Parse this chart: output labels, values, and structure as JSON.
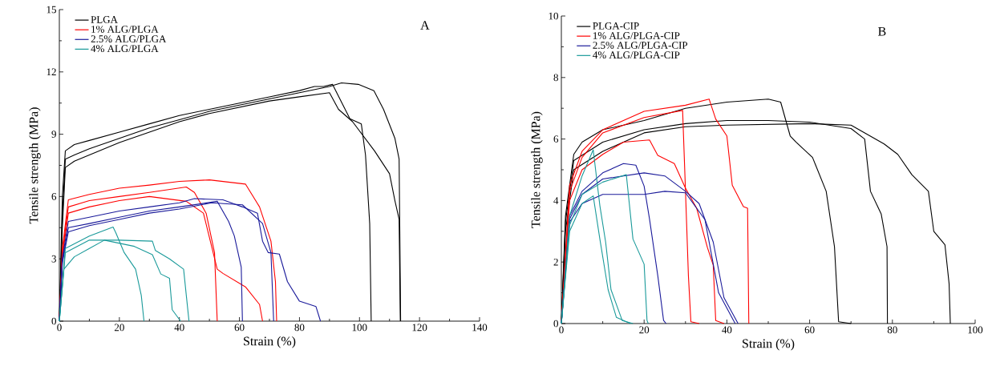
{
  "chart_data": [
    {
      "type": "line",
      "xlabel": "Strain (%)",
      "ylabel": "Tensile strength (MPa)",
      "annotations": [
        "A"
      ],
      "xlim": [
        0,
        140
      ],
      "ylim": [
        0,
        15
      ],
      "xticks": [
        0,
        20,
        40,
        60,
        80,
        100,
        120,
        140
      ],
      "yticks": [
        0,
        3,
        6,
        9,
        12,
        15
      ],
      "legend": "top left",
      "marker": "none",
      "line_style": "solid",
      "series": [
        {
          "name": "PLGA",
          "color": "#000000",
          "x": [
            0,
            1,
            2,
            5,
            10,
            20,
            30,
            40,
            50,
            60,
            70,
            80,
            85,
            88,
            91,
            96.8,
            100.6,
            102,
            103.4,
            103.9
          ],
          "values": [
            0,
            6,
            8.2,
            8.5,
            8.7,
            9.1,
            9.5,
            9.9,
            10.2,
            10.5,
            10.8,
            11.1,
            11.3,
            11.3,
            11.4,
            9.75,
            9.5,
            8.0,
            4.7,
            0
          ]
        },
        {
          "color": "#000000",
          "x": [
            0,
            1,
            2,
            5,
            10,
            20,
            30,
            40,
            50,
            60,
            70,
            80,
            90,
            94,
            99.6,
            104.8,
            108,
            111.8,
            113.2,
            113.7
          ],
          "values": [
            0,
            5,
            7.8,
            8.0,
            8.3,
            8.8,
            9.3,
            9.7,
            10.1,
            10.4,
            10.7,
            11.0,
            11.3,
            11.47,
            11.4,
            11.1,
            10.2,
            8.8,
            7.8,
            0
          ]
        },
        {
          "color": "#000000",
          "x": [
            0,
            1,
            2,
            5,
            10,
            20,
            30,
            40,
            50,
            60,
            70,
            80,
            90,
            93,
            97.7,
            105,
            110,
            111.8,
            113.2,
            113.6
          ],
          "values": [
            0,
            4.5,
            7.4,
            7.7,
            8.0,
            8.6,
            9.1,
            9.6,
            10.0,
            10.3,
            10.6,
            10.8,
            11.0,
            10.2,
            9.6,
            8.2,
            7.1,
            5.8,
            4.9,
            0
          ]
        },
        {
          "name": "1% ALG/PLGA",
          "color": "#ff0000",
          "x": [
            0,
            1,
            3,
            10,
            20,
            30,
            40,
            50,
            62,
            66.7,
            70.5,
            72,
            72.4
          ],
          "values": [
            0,
            3.5,
            5.84,
            6.1,
            6.4,
            6.55,
            6.73,
            6.8,
            6.6,
            5.5,
            3.85,
            1.9,
            0
          ]
        },
        {
          "color": "#ff0000",
          "x": [
            0,
            1,
            3,
            10,
            20,
            30,
            42.3,
            45,
            48.9,
            51.7,
            52.6
          ],
          "values": [
            0,
            3.3,
            5.5,
            5.8,
            6.0,
            6.2,
            6.46,
            6.2,
            5.2,
            3.3,
            0
          ]
        },
        {
          "color": "#ff0000",
          "x": [
            0,
            1,
            3,
            10,
            20,
            30,
            42.3,
            48,
            52.6,
            54.5,
            62,
            66.7,
            67.7
          ],
          "values": [
            0,
            3.1,
            5.2,
            5.5,
            5.8,
            6.0,
            5.77,
            5.2,
            2.5,
            2.3,
            1.65,
            0.8,
            0
          ]
        },
        {
          "name": "2.5% ALG/PLGA",
          "color": "#1a1a9a",
          "x": [
            0,
            1,
            3,
            10,
            20,
            30,
            40,
            45,
            54.5,
            61,
            66,
            67.7,
            69.6,
            73.3,
            76,
            80,
            85.5,
            87
          ],
          "values": [
            0,
            3,
            4.8,
            5.0,
            5.3,
            5.5,
            5.7,
            5.9,
            5.84,
            5.5,
            5.2,
            3.85,
            3.3,
            3.23,
            1.9,
            0.96,
            0.7,
            0
          ]
        },
        {
          "color": "#1a1a9a",
          "x": [
            0,
            1,
            3,
            10,
            20,
            30,
            40,
            52.6,
            56.4,
            58.3,
            60.6,
            61
          ],
          "values": [
            0,
            2.9,
            4.5,
            4.7,
            5.0,
            5.3,
            5.5,
            5.77,
            4.8,
            4.1,
            2.6,
            0
          ]
        },
        {
          "color": "#1a1a9a",
          "x": [
            0,
            1,
            3,
            10,
            20,
            30,
            40,
            50.8,
            61,
            67.7,
            70.5,
            71.4
          ],
          "values": [
            0,
            2.8,
            4.3,
            4.6,
            4.9,
            5.2,
            5.4,
            5.7,
            5.6,
            4.7,
            3.3,
            0
          ]
        },
        {
          "name": "4% ALG/PLGA",
          "color": "#1a9a9a",
          "x": [
            0,
            2,
            10,
            17.9,
            18.8,
            21.6,
            25.4,
            27.3,
            28.2
          ],
          "values": [
            0,
            3.5,
            4.1,
            4.53,
            4.26,
            3.3,
            2.5,
            1.24,
            0
          ]
        },
        {
          "color": "#1a9a9a",
          "x": [
            0,
            2,
            10,
            20,
            31,
            32,
            36.7,
            41.4,
            42.3,
            43.2
          ],
          "values": [
            0,
            3.3,
            3.9,
            3.9,
            3.85,
            3.4,
            3.0,
            2.5,
            1.24,
            0
          ]
        },
        {
          "color": "#1a9a9a",
          "x": [
            0,
            1.5,
            5,
            10,
            15,
            25,
            31,
            33.8,
            36.7,
            37.6,
            40.4
          ],
          "values": [
            0,
            2.5,
            3.1,
            3.5,
            3.9,
            3.6,
            3.2,
            2.27,
            2.06,
            0.55,
            0
          ]
        }
      ]
    },
    {
      "type": "line",
      "xlabel": "Strain (%)",
      "ylabel": "Tensile strength (MPa)",
      "annotations": [
        "B"
      ],
      "xlim": [
        0,
        100
      ],
      "ylim": [
        0,
        10
      ],
      "xticks": [
        0,
        20,
        40,
        60,
        80,
        100
      ],
      "yticks": [
        0,
        2,
        4,
        6,
        8,
        10
      ],
      "legend": "top left",
      "marker": "none",
      "line_style": "solid",
      "series": [
        {
          "name": "PLGA-CIP",
          "color": "#000000",
          "x": [
            0,
            1,
            3,
            5,
            10,
            20,
            30,
            40,
            50,
            53,
            55.3,
            56.7,
            60.7,
            64,
            66,
            67,
            70
          ],
          "values": [
            0,
            3.5,
            5.5,
            5.9,
            6.3,
            6.6,
            7.0,
            7.2,
            7.3,
            7.2,
            6.1,
            5.9,
            5.4,
            4.3,
            2.5,
            0.06,
            0
          ]
        },
        {
          "color": "#000000",
          "x": [
            0,
            1,
            3,
            10,
            20,
            30,
            40,
            50,
            60,
            70,
            73.3,
            74.7,
            77.3,
            78.7,
            78.8
          ],
          "values": [
            0,
            3.3,
            5.3,
            5.9,
            6.3,
            6.5,
            6.6,
            6.6,
            6.55,
            6.34,
            6.0,
            4.3,
            3.56,
            2.5,
            0
          ]
        },
        {
          "color": "#000000",
          "x": [
            0,
            1,
            3,
            10,
            20,
            30,
            40,
            60,
            70,
            78,
            81.3,
            84.7,
            88.7,
            90,
            92.7,
            93.7,
            94
          ],
          "values": [
            0,
            3.0,
            5.0,
            5.6,
            6.2,
            6.4,
            6.45,
            6.5,
            6.45,
            5.84,
            5.5,
            4.84,
            4.3,
            3.0,
            2.56,
            1.3,
            0
          ]
        },
        {
          "name": "1% ALG/PLGA-CIP",
          "color": "#ff0000",
          "x": [
            0,
            2,
            5,
            10,
            20,
            30,
            35.7,
            37.3,
            40,
            41.3,
            44,
            45,
            45.3
          ],
          "values": [
            0,
            4.5,
            5.6,
            6.3,
            6.9,
            7.1,
            7.3,
            6.65,
            6.1,
            4.5,
            3.8,
            3.75,
            0
          ]
        },
        {
          "color": "#ff0000",
          "x": [
            0,
            2,
            5,
            10,
            20,
            29.3,
            30,
            30.7,
            31.3,
            33.3
          ],
          "values": [
            0,
            4.3,
            5.4,
            6.2,
            6.7,
            6.93,
            4.3,
            1.56,
            0.06,
            0
          ]
        },
        {
          "color": "#ff0000",
          "x": [
            0,
            2,
            5,
            10,
            15,
            21.3,
            23.3,
            27.3,
            30,
            32.7,
            35.3,
            36.7,
            37.3,
            39.3
          ],
          "values": [
            0,
            4.0,
            5.0,
            5.5,
            5.9,
            5.97,
            5.47,
            5.2,
            4.4,
            3.75,
            2.47,
            1.9,
            0.1,
            0
          ]
        },
        {
          "name": "2.5% ALG/PLGA-CIP",
          "color": "#1a1a9a",
          "x": [
            0,
            2,
            5,
            10,
            15,
            18,
            20,
            21.3,
            23.3,
            24.7,
            25.3
          ],
          "values": [
            0,
            3.5,
            4.3,
            4.9,
            5.2,
            5.15,
            4.47,
            3.4,
            1.56,
            0.1,
            0
          ]
        },
        {
          "color": "#1a1a9a",
          "x": [
            0,
            2,
            5,
            10,
            20,
            25,
            30,
            33.3,
            36.7,
            39.3,
            42.7
          ],
          "values": [
            0,
            3.4,
            4.2,
            4.7,
            4.9,
            4.8,
            4.3,
            3.9,
            2.65,
            0.84,
            0
          ]
        },
        {
          "color": "#1a1a9a",
          "x": [
            0,
            2,
            5,
            10,
            20,
            25,
            30,
            34.7,
            38,
            42
          ],
          "values": [
            0,
            3.3,
            3.9,
            4.2,
            4.2,
            4.3,
            4.25,
            3.38,
            1.0,
            0
          ]
        },
        {
          "name": "4% ALG/PLGA-CIP",
          "color": "#1a9a9a",
          "x": [
            0,
            2,
            5,
            7.7,
            9.3,
            10.7,
            12,
            14.7,
            17.3
          ],
          "values": [
            0,
            3.5,
            4.8,
            5.65,
            3.84,
            2.65,
            1.1,
            0.1,
            0
          ]
        },
        {
          "color": "#1a9a9a",
          "x": [
            0,
            2,
            5,
            10,
            15.7,
            17.3,
            20,
            20.7,
            21
          ],
          "values": [
            0,
            3.2,
            4.2,
            4.6,
            4.84,
            2.75,
            1.93,
            0.1,
            0
          ]
        },
        {
          "color": "#1a9a9a",
          "x": [
            0,
            2,
            5,
            7.7,
            9.3,
            11.3,
            13.3,
            16.7
          ],
          "values": [
            0,
            3.0,
            3.9,
            4.15,
            2.75,
            1.1,
            0.2,
            0
          ]
        }
      ]
    }
  ]
}
